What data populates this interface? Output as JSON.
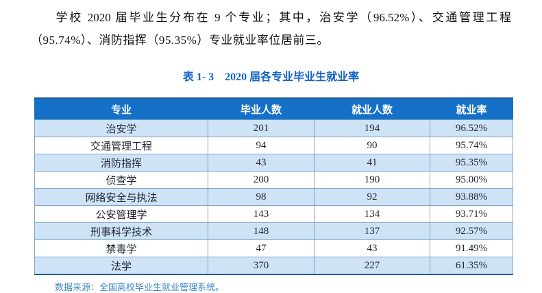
{
  "paragraph": {
    "lines": [
      "学校 2020 届毕业生分布在 9 个专业；其中，治安学（96.52%）、交通管理工程",
      "（95.74%）、消防指挥（95.35%）专业就业率位居前三。"
    ]
  },
  "table_caption": "表 1- 3　2020 届各专业毕业生就业率",
  "table": {
    "headers": [
      "专业",
      "毕业人数",
      "就业人数",
      "就业率"
    ],
    "rows": [
      {
        "major": "治安学",
        "graduates": "201",
        "employed": "194",
        "rate": "96.52%"
      },
      {
        "major": "交通管理工程",
        "graduates": "94",
        "employed": "90",
        "rate": "95.74%"
      },
      {
        "major": "消防指挥",
        "graduates": "43",
        "employed": "41",
        "rate": "95.35%"
      },
      {
        "major": "侦查学",
        "graduates": "200",
        "employed": "190",
        "rate": "95.00%"
      },
      {
        "major": "网络安全与执法",
        "graduates": "98",
        "employed": "92",
        "rate": "93.88%"
      },
      {
        "major": "公安管理学",
        "graduates": "143",
        "employed": "134",
        "rate": "93.71%"
      },
      {
        "major": "刑事科学技术",
        "graduates": "148",
        "employed": "137",
        "rate": "92.57%"
      },
      {
        "major": "禁毒学",
        "graduates": "47",
        "employed": "43",
        "rate": "91.49%"
      },
      {
        "major": "法学",
        "graduates": "370",
        "employed": "227",
        "rate": "61.35%"
      }
    ]
  },
  "footnote": "数据来源：全国高校毕业生就业管理系统。",
  "colors": {
    "header_bg": "#1571c8",
    "row_alt_bg": "#cfe3f7",
    "title_blue": "#1663c7",
    "footnote_blue": "#3e86c6",
    "border_dark": "#1f5a96",
    "border_light": "#7fa3c4",
    "text_dark": "#1f2430"
  }
}
